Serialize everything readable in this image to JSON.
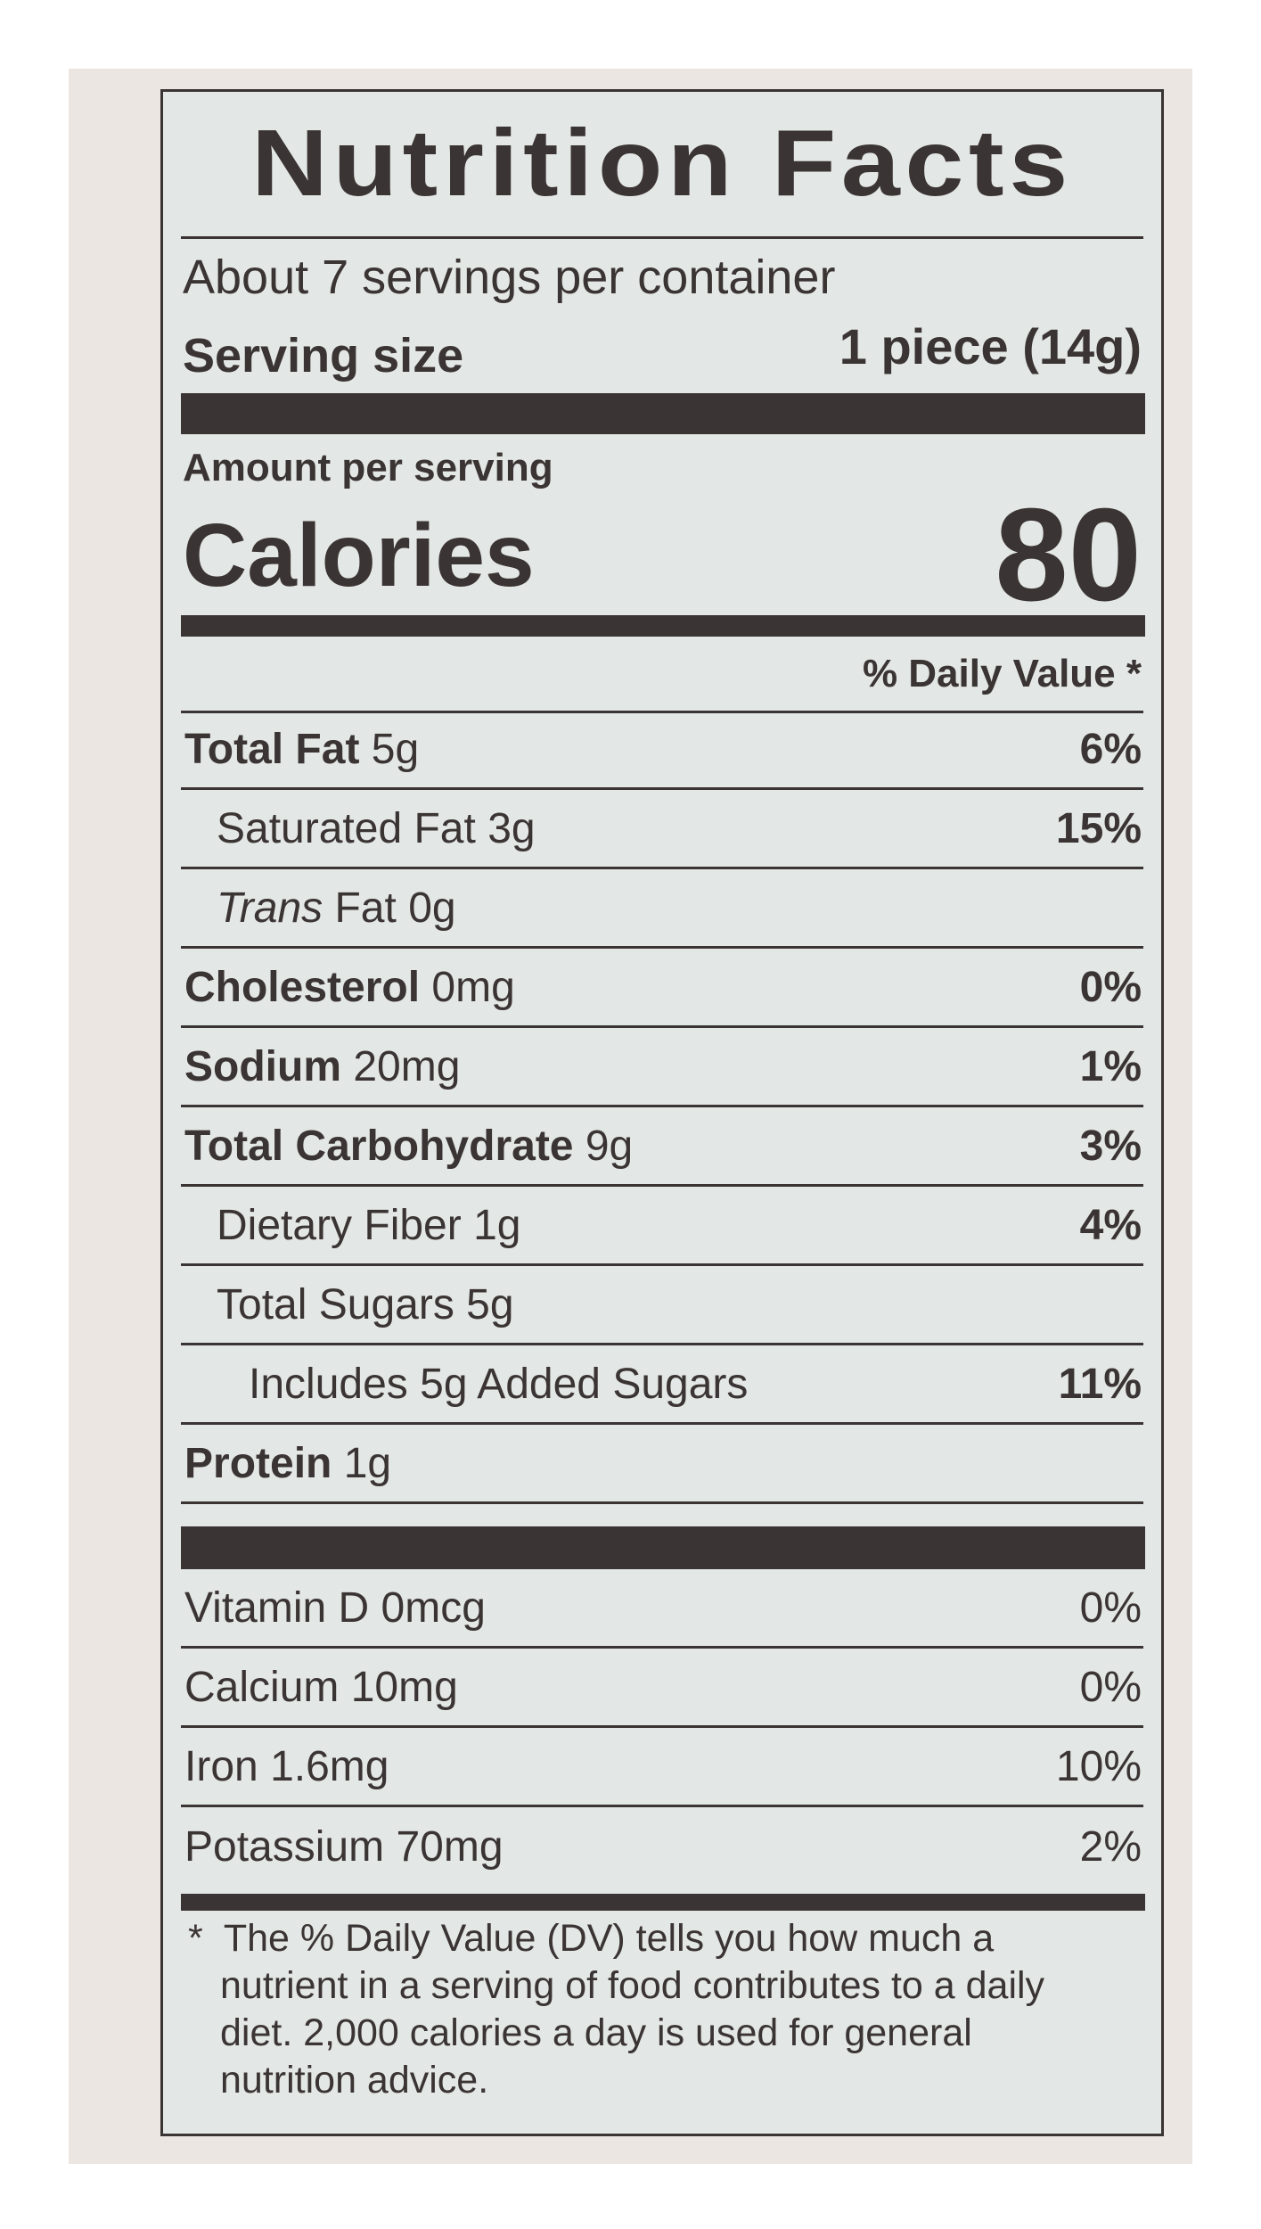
{
  "title": "Nutrition Facts",
  "servings_per_container": "About 7 servings per container",
  "serving_size": {
    "label": "Serving size",
    "value": "1 piece (14g)"
  },
  "amount_per_serving": "Amount per serving",
  "calories": {
    "label": "Calories",
    "value": "80"
  },
  "daily_value_header": "% Daily Value *",
  "nutrients": [
    {
      "name": "Total Fat",
      "amount": "5g",
      "dv": "6%",
      "bold": true,
      "indent": 0
    },
    {
      "name": "Saturated Fat",
      "amount": "3g",
      "dv": "15%",
      "bold": false,
      "indent": 1
    },
    {
      "name": "Trans",
      "name_suffix": "Fat",
      "amount": "0g",
      "dv": "",
      "bold": false,
      "italic": true,
      "indent": 1
    },
    {
      "name": "Cholesterol",
      "amount": "0mg",
      "dv": "0%",
      "bold": true,
      "indent": 0
    },
    {
      "name": "Sodium",
      "amount": "20mg",
      "dv": "1%",
      "bold": true,
      "indent": 0
    },
    {
      "name": "Total Carbohydrate",
      "amount": "9g",
      "dv": "3%",
      "bold": true,
      "indent": 0
    },
    {
      "name": "Dietary Fiber",
      "amount": "1g",
      "dv": "4%",
      "bold": false,
      "indent": 1
    },
    {
      "name": "Total Sugars",
      "amount": "5g",
      "dv": "",
      "bold": false,
      "indent": 1
    },
    {
      "name": "Includes 5g Added Sugars",
      "amount": "",
      "dv": "11%",
      "bold": false,
      "indent": 2
    },
    {
      "name": "Protein",
      "amount": "1g",
      "dv": "",
      "bold": true,
      "indent": 0
    }
  ],
  "vitamins": [
    {
      "name": "Vitamin D",
      "amount": "0mcg",
      "dv": "0%"
    },
    {
      "name": "Calcium",
      "amount": "10mg",
      "dv": "0%"
    },
    {
      "name": "Iron",
      "amount": "1.6mg",
      "dv": "10%"
    },
    {
      "name": "Potassium",
      "amount": "70mg",
      "dv": "2%"
    }
  ],
  "footnote": "The % Daily Value (DV) tells you how much a nutrient in a serving of food contributes to a daily diet. 2,000 calories a day is used for general nutrition advice.",
  "footnote_marker": "*",
  "colors": {
    "ink": "#3b3434",
    "label_bg": "#e3e7e5",
    "package_bg": "#ebe6e2"
  }
}
